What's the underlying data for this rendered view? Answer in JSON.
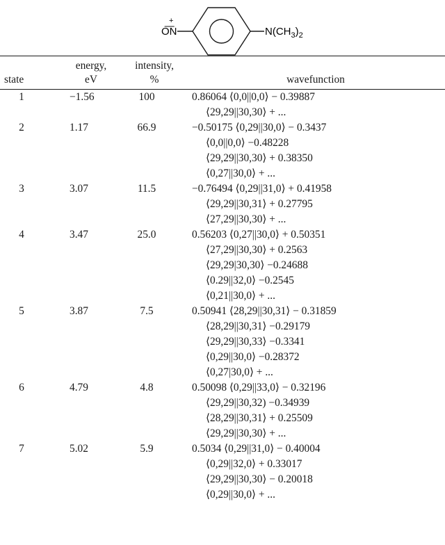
{
  "structure": {
    "left_group": "O͞N",
    "left_charge": "+",
    "right_group": "N(CH",
    "right_sub1": "3",
    "right_close": ")",
    "right_sub2": "2"
  },
  "table": {
    "headers": {
      "state": "state",
      "energy_l1": "energy,",
      "energy_l2": "eV",
      "intensity_l1": "intensity,",
      "intensity_l2": "%",
      "wavefunction": "wavefunction"
    },
    "rows": [
      {
        "state": "1",
        "energy": "−1.56",
        "intensity": "100",
        "wavefunction": [
          "0.86064 ⟨0,0||0,0⟩ − 0.39887",
          "⟨29,29||30,30⟩ + ..."
        ]
      },
      {
        "state": "2",
        "energy": "1.17",
        "intensity": "66.9",
        "wavefunction": [
          "−0.50175 ⟨0,29||30,0⟩ − 0.3437",
          "⟨0,0||0,0⟩ −0.48228",
          "⟨29,29||30,30⟩ + 0.38350",
          "⟨0,27||30,0⟩ + ..."
        ]
      },
      {
        "state": "3",
        "energy": "3.07",
        "intensity": "11.5",
        "wavefunction": [
          "−0.76494 ⟨0,29||31,0⟩ + 0.41958",
          "⟨29,29||30,31⟩ + 0.27795",
          "⟨27,29||30,30⟩ + ..."
        ]
      },
      {
        "state": "4",
        "energy": "3.47",
        "intensity": "25.0",
        "wavefunction": [
          "0.56203 ⟨0,27||30,0⟩ + 0.50351",
          "⟨27,29||30,30⟩ + 0.2563",
          "⟨29,29|30,30⟩ −0.24688",
          "⟨0.29||32,0⟩ −0.2545",
          "⟨0,21||30,0⟩ + ..."
        ]
      },
      {
        "state": "5",
        "energy": "3.87",
        "intensity": "7.5",
        "wavefunction": [
          "0.50941 ⟨28,29||30,31⟩ − 0.31859",
          "⟨28,29||30,31⟩ −0.29179",
          "⟨29,29||30,33⟩ −0.3341",
          "⟨0,29||30,0⟩ −0.28372",
          "⟨0,27|30,0⟩ + ..."
        ]
      },
      {
        "state": "6",
        "energy": "4.79",
        "intensity": "4.8",
        "wavefunction": [
          "0.50098 ⟨0,29||33,0⟩ − 0.32196",
          "⟨29,29||30,32) −0.34939",
          "⟨28,29||30,31⟩ + 0.25509",
          "⟨29,29||30,30⟩ + ..."
        ]
      },
      {
        "state": "7",
        "energy": "5.02",
        "intensity": "5.9",
        "wavefunction": [
          "0.5034 ⟨0,29||31,0⟩ − 0.40004",
          "⟨0,29||32,0⟩ + 0.33017",
          "⟨29,29||30,30⟩ − 0.20018",
          "⟨0,29||30,0⟩ + ..."
        ]
      }
    ]
  }
}
